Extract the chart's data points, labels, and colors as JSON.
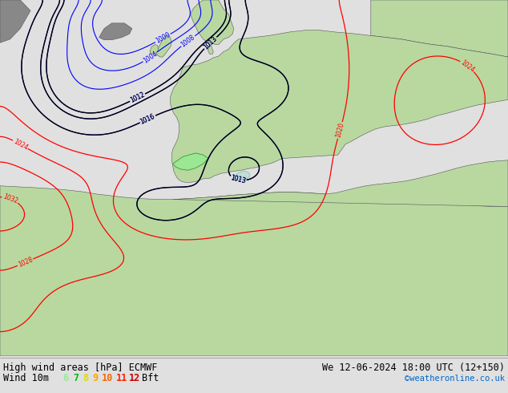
{
  "title_left": "High wind areas [hPa] ECMWF",
  "title_right": "We 12-06-2024 18:00 UTC (12+150)",
  "subtitle_left": "Wind 10m",
  "legend_numbers": [
    "6",
    "7",
    "8",
    "9",
    "10",
    "11",
    "12"
  ],
  "legend_colors": [
    "#90ee90",
    "#00bb00",
    "#dddd00",
    "#ffa500",
    "#ff6600",
    "#ff2200",
    "#cc0000"
  ],
  "legend_suffix": "Bft",
  "credit": "©weatheronline.co.uk",
  "sea_color": "#d8d8d8",
  "land_color_green": "#b8d8a0",
  "land_color_dark": "#888888",
  "fig_width": 6.34,
  "fig_height": 4.9,
  "dpi": 100,
  "bottom_bar_color": "#e0e0e0",
  "font_color": "#000000",
  "title_fontsize": 8.5,
  "legend_fontsize": 8.5,
  "map_bg": "#d0d0d0"
}
